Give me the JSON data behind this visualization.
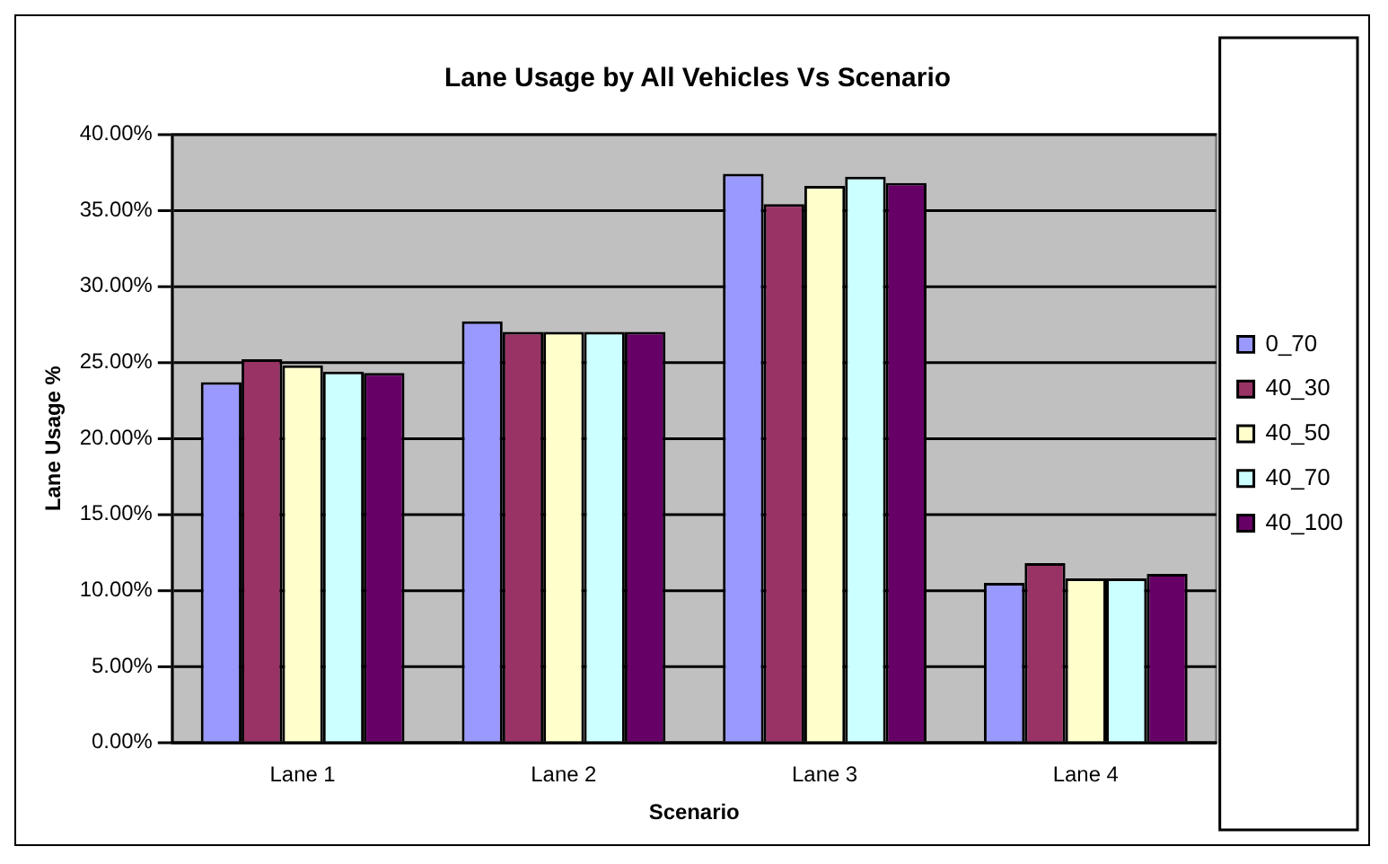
{
  "chart_data": {
    "type": "bar",
    "title": "Lane Usage by All Vehicles Vs Scenario",
    "xlabel": "Scenario",
    "ylabel": "Lane Usage %",
    "categories": [
      "Lane 1",
      "Lane 2",
      "Lane 3",
      "Lane 4"
    ],
    "series": [
      {
        "name": "0_70",
        "color": "#9999ff",
        "values": [
          23.7,
          27.7,
          37.4,
          10.5
        ]
      },
      {
        "name": "40_30",
        "color": "#993366",
        "values": [
          25.2,
          27.0,
          35.4,
          11.8
        ]
      },
      {
        "name": "40_50",
        "color": "#ffffcc",
        "values": [
          24.8,
          27.0,
          36.6,
          10.8
        ]
      },
      {
        "name": "40_70",
        "color": "#ccffff",
        "values": [
          24.4,
          27.0,
          37.2,
          10.8
        ]
      },
      {
        "name": "40_100",
        "color": "#660066",
        "values": [
          24.3,
          27.0,
          36.8,
          11.1
        ]
      }
    ],
    "ylim": [
      0,
      40
    ],
    "yticks": [
      {
        "value": 0,
        "label": "0.00%"
      },
      {
        "value": 5,
        "label": "5.00%"
      },
      {
        "value": 10,
        "label": "10.00%"
      },
      {
        "value": 15,
        "label": "15.00%"
      },
      {
        "value": 20,
        "label": "20.00%"
      },
      {
        "value": 25,
        "label": "25.00%"
      },
      {
        "value": 30,
        "label": "30.00%"
      },
      {
        "value": 35,
        "label": "35.00%"
      },
      {
        "value": 40,
        "label": "40.00%"
      }
    ],
    "grid": "y",
    "legend": "right"
  }
}
